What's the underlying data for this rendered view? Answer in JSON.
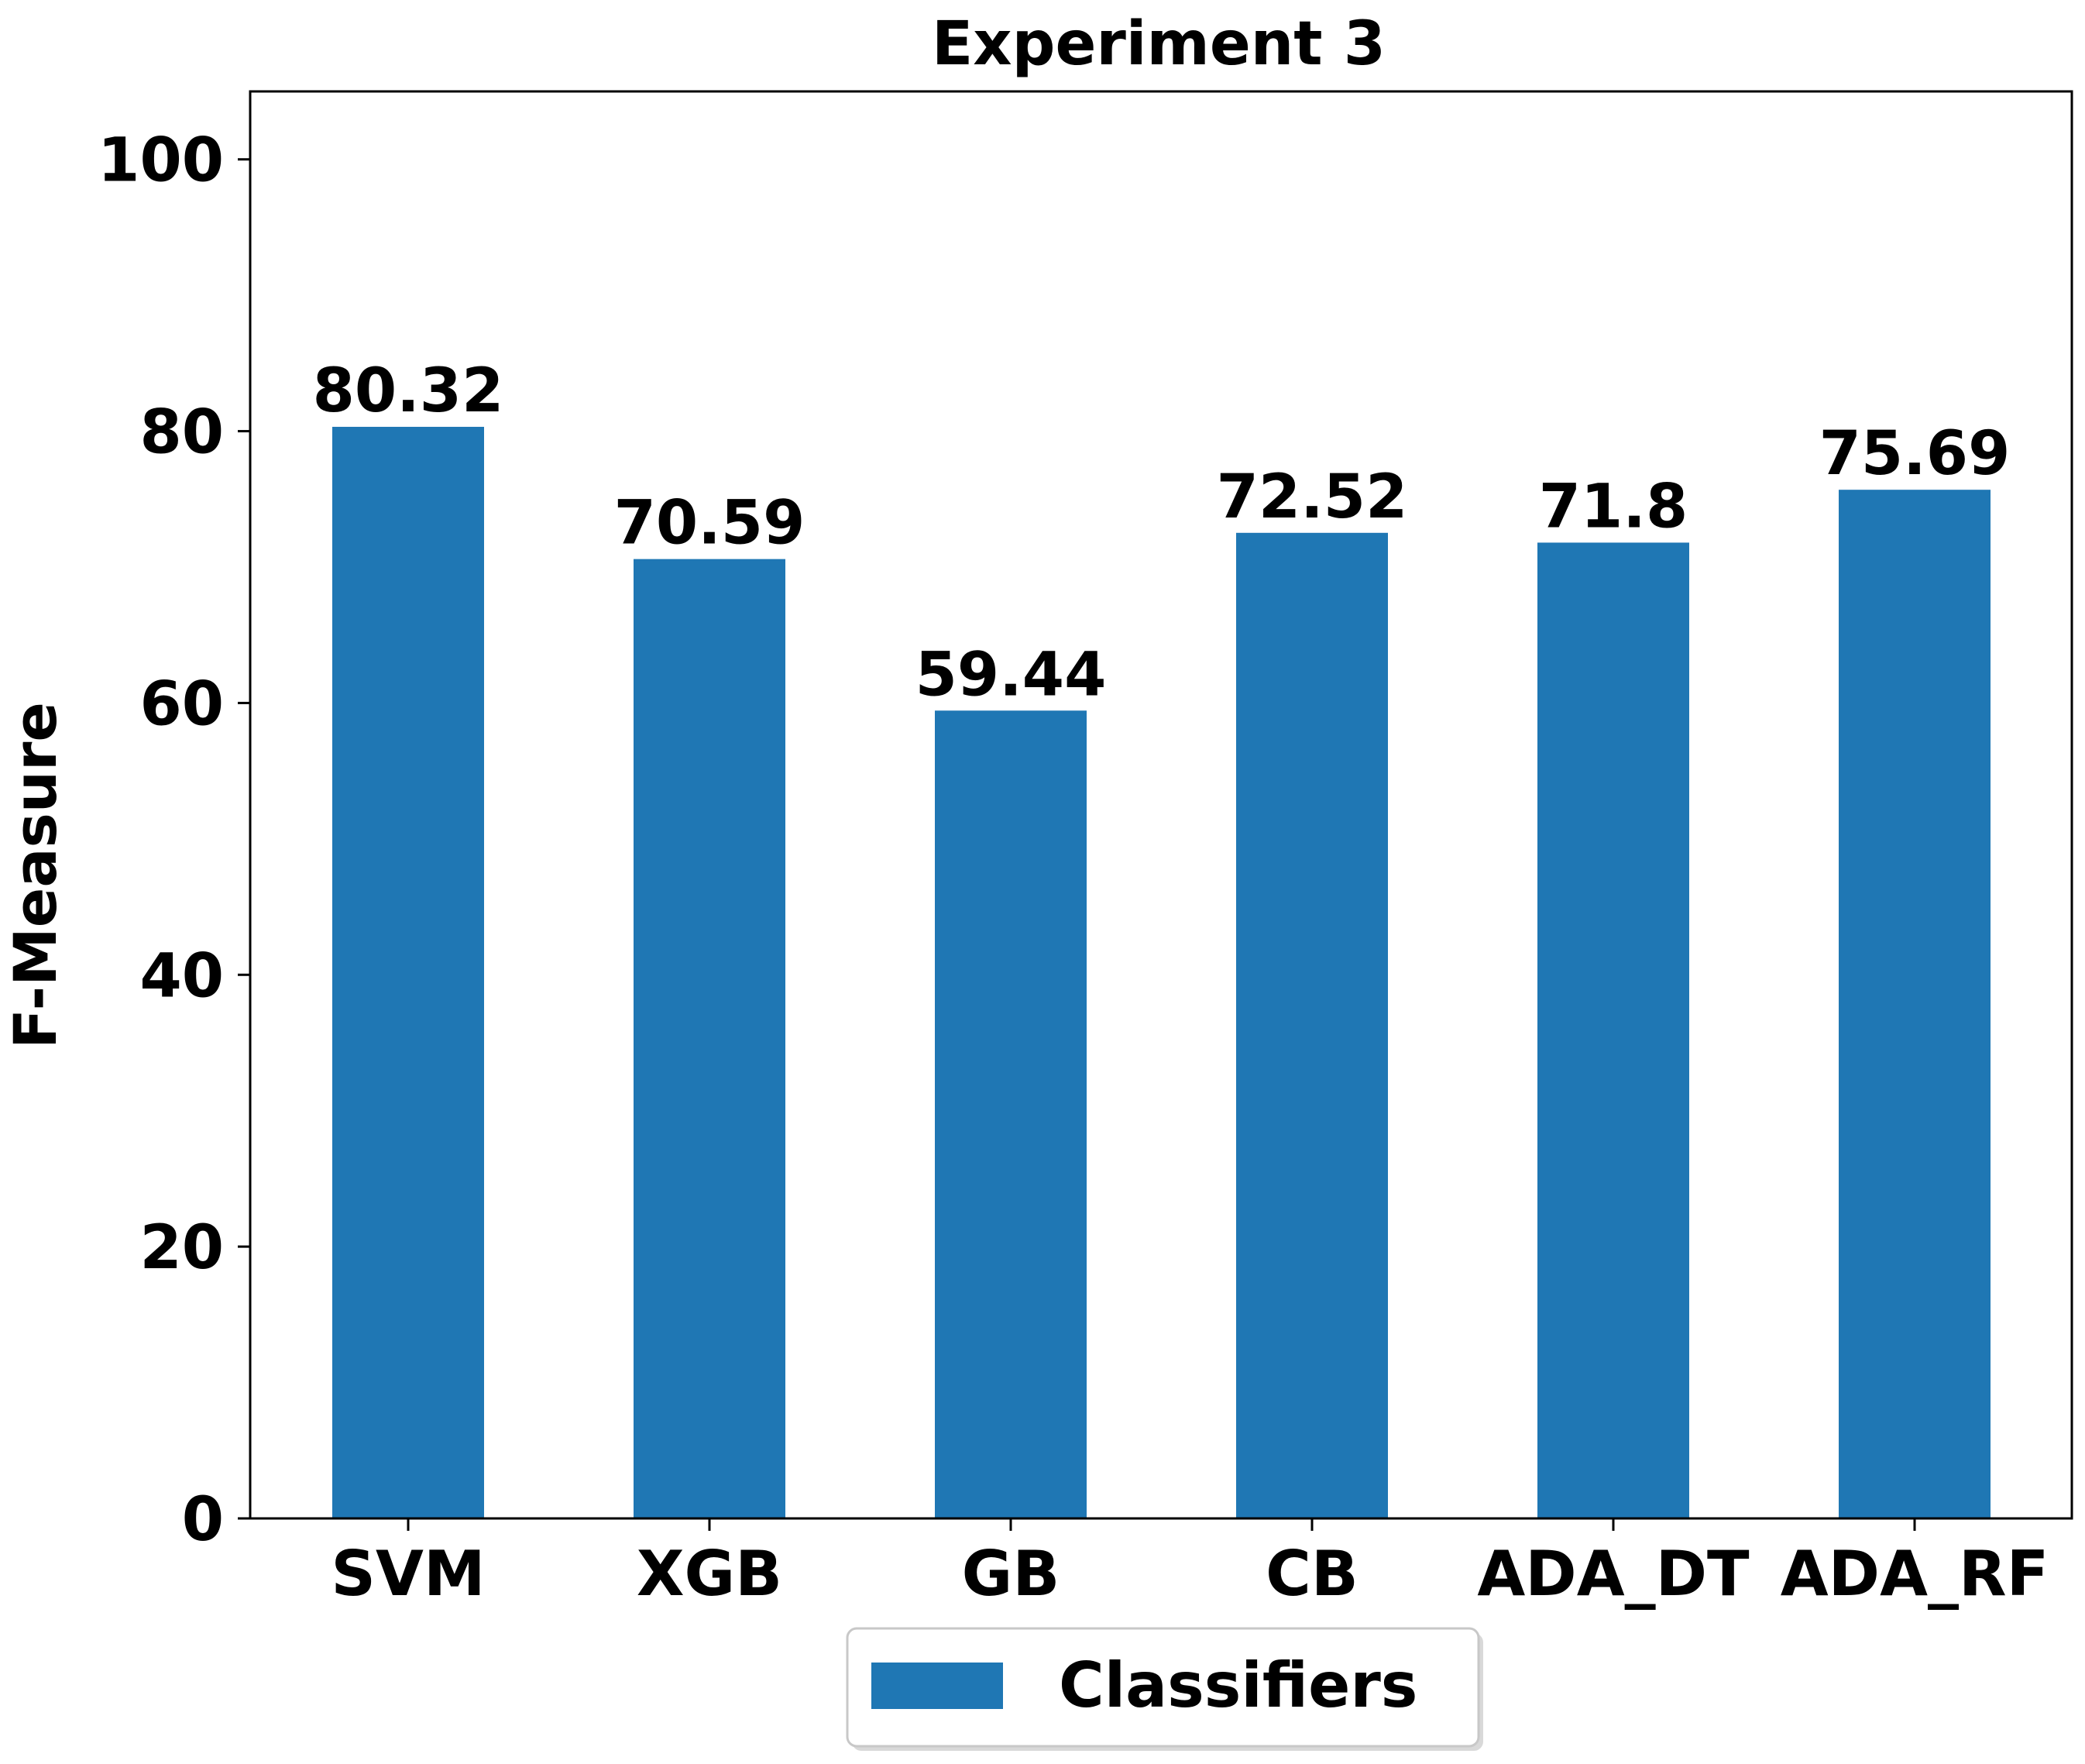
{
  "chart_data": {
    "type": "bar",
    "title": "Experiment 3",
    "xlabel": "",
    "ylabel": "F-Measure",
    "categories": [
      "SVM",
      "XGB",
      "GB",
      "CB",
      "ADA_DT",
      "ADA_RF"
    ],
    "series": [
      {
        "name": "Classifiers",
        "values": [
          80.32,
          70.59,
          59.44,
          72.52,
          71.8,
          75.69
        ],
        "value_labels": [
          "80.32",
          "70.59",
          "59.44",
          "72.52",
          "71.8",
          "75.69"
        ],
        "color": "#1f77b4"
      }
    ],
    "ylim": [
      0,
      105
    ],
    "yticks": [
      0,
      20,
      40,
      60,
      80,
      100
    ],
    "ytick_labels": [
      "0",
      "20",
      "40",
      "60",
      "80",
      "100"
    ],
    "grid": false,
    "legend": "bottom-center, below axes"
  }
}
